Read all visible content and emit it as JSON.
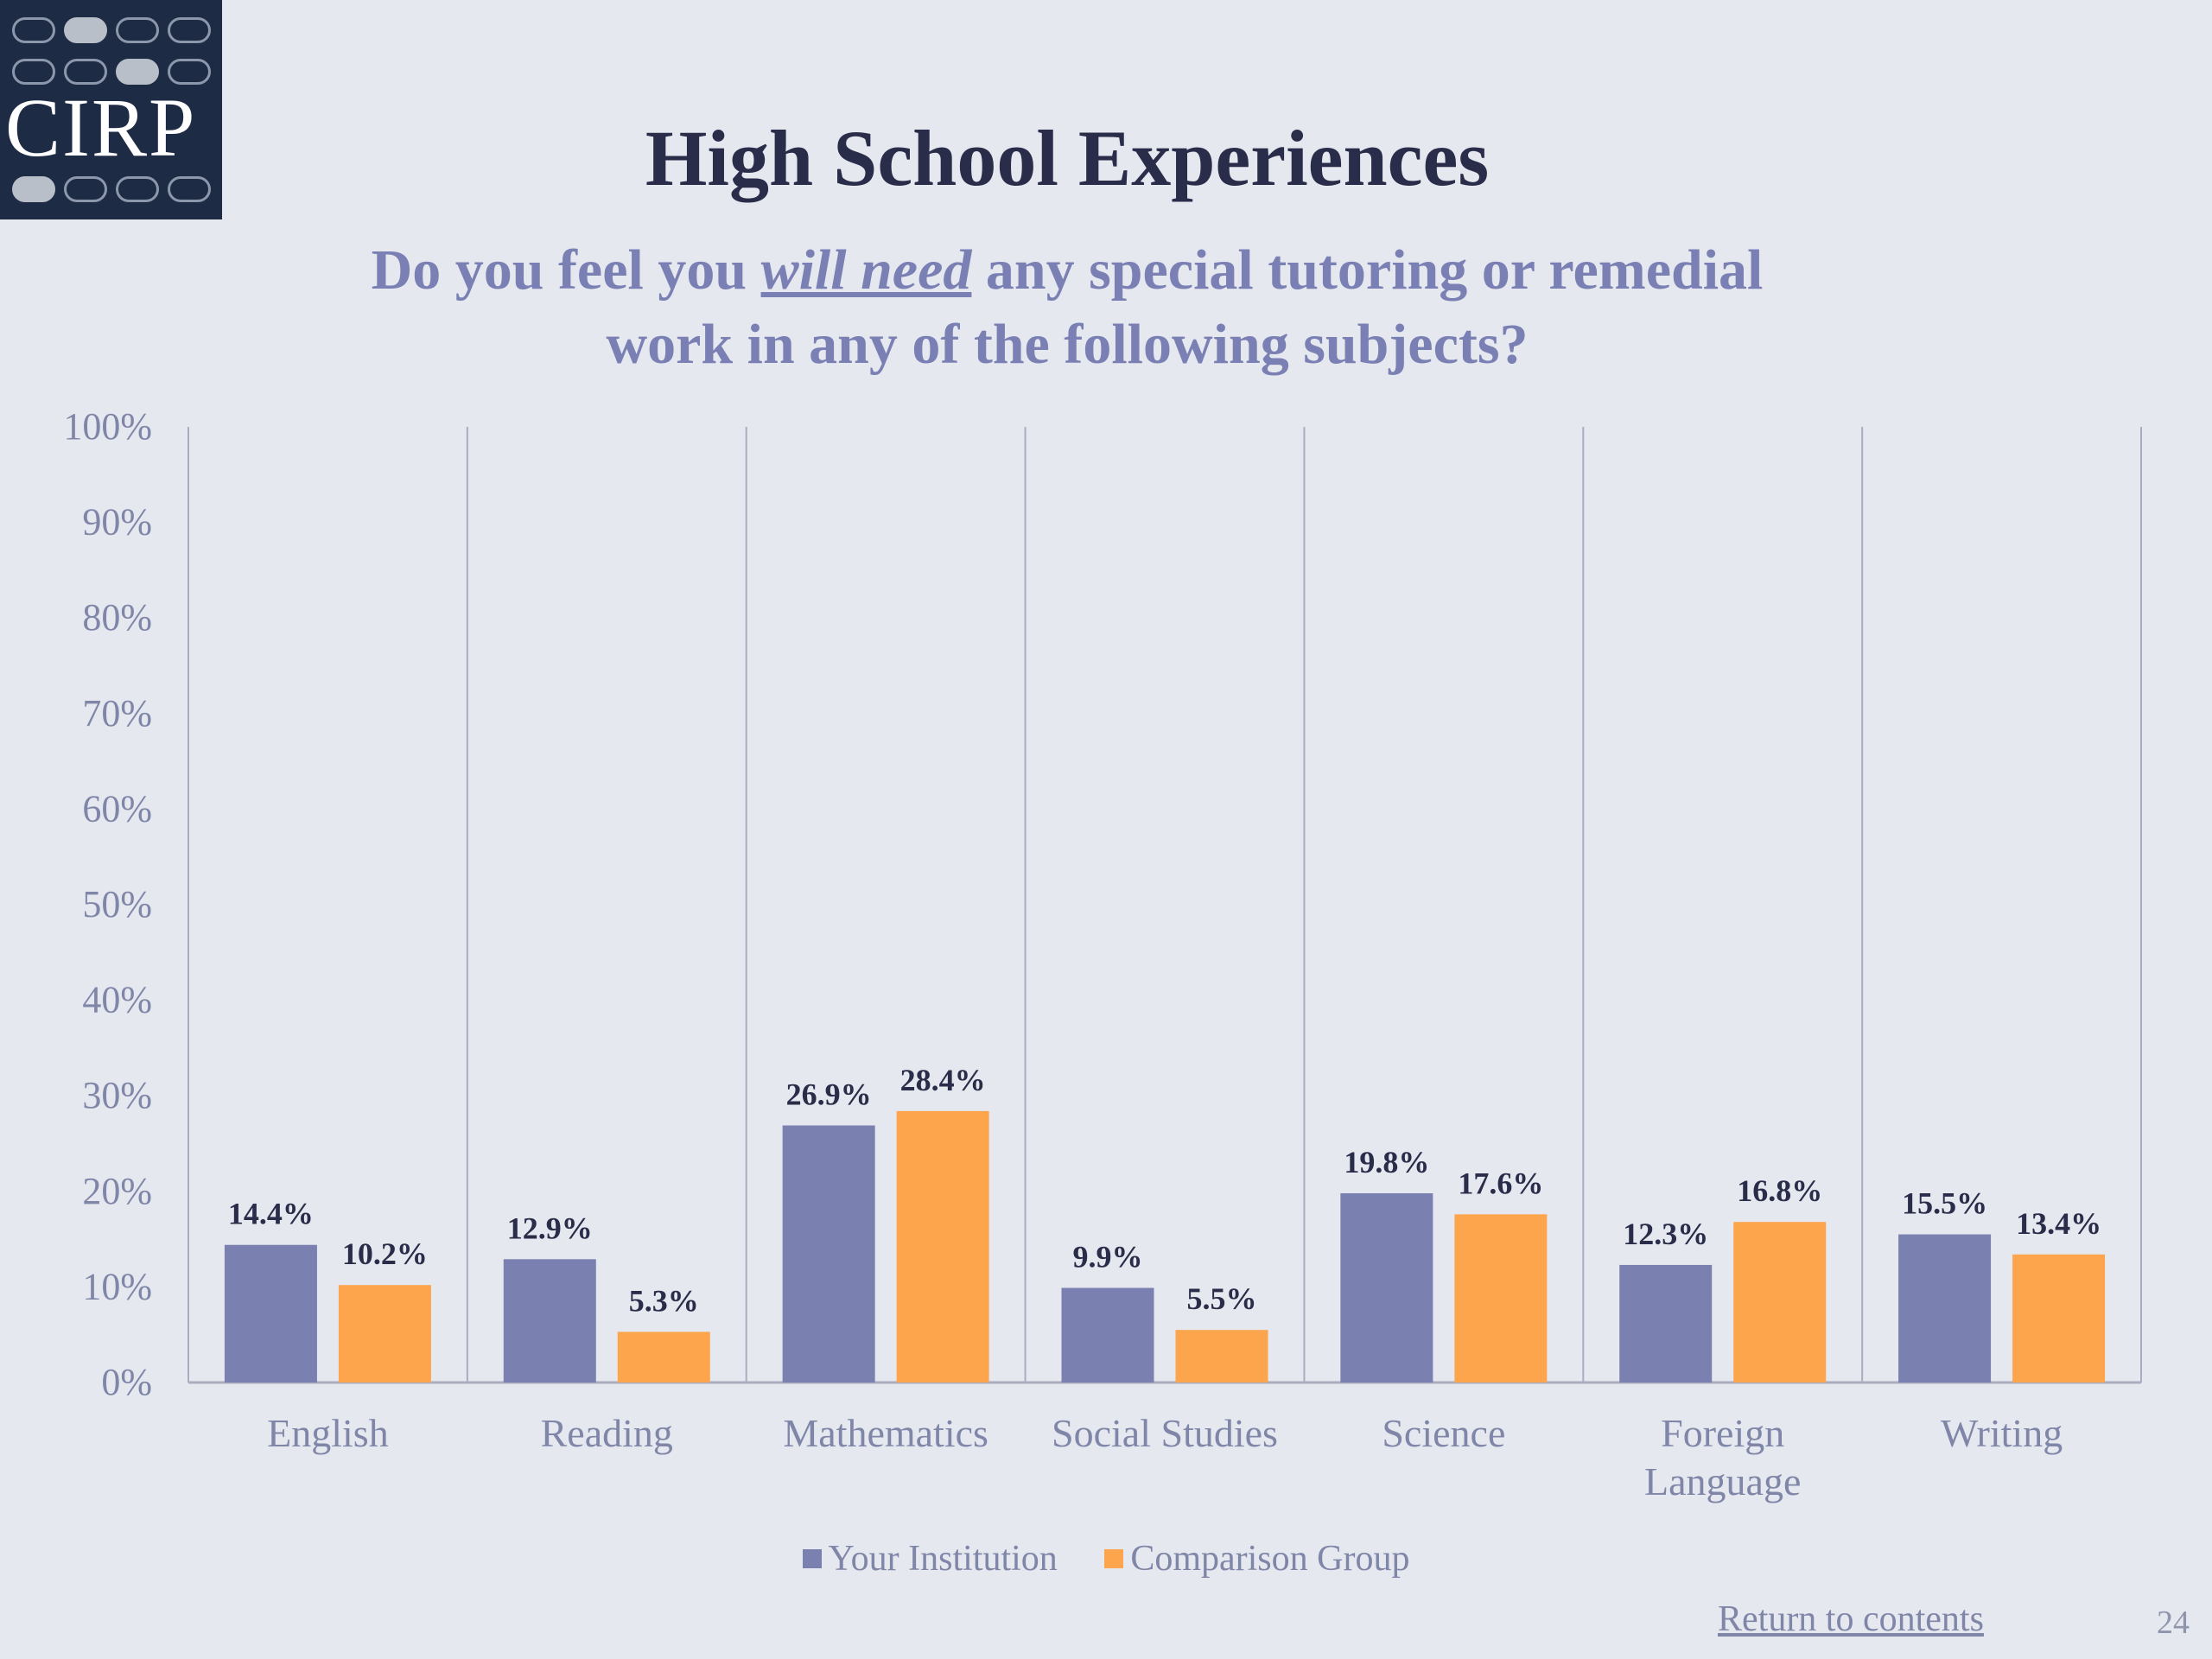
{
  "logo": {
    "text": "CIRP"
  },
  "slide": {
    "title": "High School Experiences",
    "subtitle_before": "Do you feel you ",
    "subtitle_emph": "will need",
    "subtitle_after": " any special tutoring or remedial",
    "subtitle_line2": "work in any of  the following subjects?",
    "return_link": "Return to contents",
    "page_number": "24"
  },
  "colors": {
    "your_institution": "#7a80b0",
    "comparison_group": "#fca54d",
    "title": "#2a2d4a",
    "subtitle": "#7a80b4",
    "axis_text": "#7f86a8"
  },
  "chart_data": {
    "type": "bar",
    "categories": [
      "English",
      "Reading",
      "Mathematics",
      "Social Studies",
      "Science",
      "Foreign Language",
      "Writing"
    ],
    "category_label_lines": [
      [
        "English"
      ],
      [
        "Reading"
      ],
      [
        "Mathematics"
      ],
      [
        "Social Studies"
      ],
      [
        "Science"
      ],
      [
        "Foreign",
        "Language"
      ],
      [
        "Writing"
      ]
    ],
    "series": [
      {
        "name": "Your Institution",
        "values": [
          14.4,
          12.9,
          26.9,
          9.9,
          19.8,
          12.3,
          15.5
        ],
        "labels": [
          "14.4%",
          "12.9%",
          "26.9%",
          "9.9%",
          "19.8%",
          "12.3%",
          "15.5%"
        ]
      },
      {
        "name": "Comparison Group",
        "values": [
          10.2,
          5.3,
          28.4,
          5.5,
          17.6,
          16.8,
          13.4
        ],
        "labels": [
          "10.2%",
          "5.3%",
          "28.4%",
          "5.5%",
          "17.6%",
          "16.8%",
          "13.4%"
        ]
      }
    ],
    "ylim": [
      0,
      100
    ],
    "yticks": [
      "0%",
      "10%",
      "20%",
      "30%",
      "40%",
      "50%",
      "60%",
      "70%",
      "80%",
      "90%",
      "100%"
    ],
    "legend_position": "bottom-center",
    "grid": "vertical category separators"
  }
}
